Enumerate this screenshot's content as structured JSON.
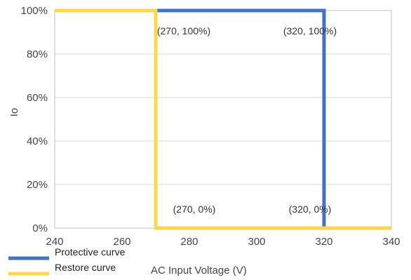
{
  "chart_data": {
    "type": "line",
    "title": "",
    "xlabel": "AC Input Voltage (V)",
    "ylabel": "Io",
    "xlim": [
      240,
      340
    ],
    "ylim": [
      0,
      100
    ],
    "x_ticks": [
      "240",
      "260",
      "280",
      "300",
      "320",
      "340"
    ],
    "y_ticks": [
      "0%",
      "20%",
      "40%",
      "60%",
      "80%",
      "100%"
    ],
    "grid": "horizontal",
    "legend_placement": "bottom-left",
    "series": [
      {
        "name": "Protective curve",
        "color": "#4472c4",
        "points": [
          [
            240,
            100
          ],
          [
            320,
            100
          ],
          [
            320,
            0
          ],
          [
            340,
            0
          ]
        ]
      },
      {
        "name": "Restore curve",
        "color": "#ffd54f",
        "points": [
          [
            240,
            100
          ],
          [
            270,
            100
          ],
          [
            270,
            0
          ],
          [
            340,
            0
          ]
        ]
      }
    ],
    "annotations": [
      {
        "text": "(270, 100%)",
        "x": 270,
        "y": 100
      },
      {
        "text": "(320, 100%)",
        "x": 320,
        "y": 100
      },
      {
        "text": "(270, 0%)",
        "x": 270,
        "y": 0
      },
      {
        "text": "(320, 0%)",
        "x": 320,
        "y": 0
      }
    ]
  }
}
